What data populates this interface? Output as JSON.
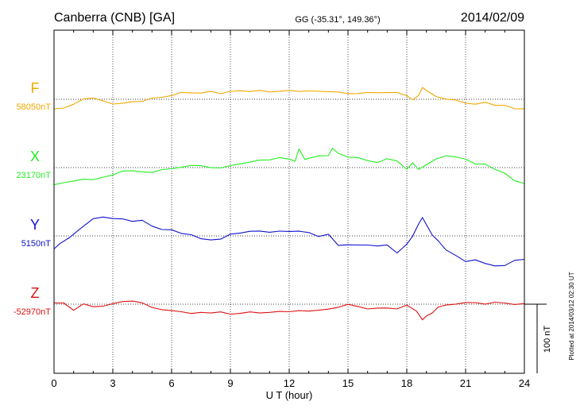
{
  "chart_data": {
    "type": "line",
    "title": "Canberra (CNB)  [GA]",
    "coords": "GG (-35.31°, 149.36°)",
    "date": "2014/02/09",
    "xlabel": "U T (hour)",
    "xlim": [
      0,
      24
    ],
    "xticks": [
      "0",
      "3",
      "6",
      "9",
      "12",
      "15",
      "18",
      "21",
      "24"
    ],
    "grid": true,
    "scale_bar_label": "100 nT",
    "plotted_note": "Plotted at 2014/03/12 02:30 UT",
    "series": [
      {
        "name": "F",
        "baseline_label": "58050nT",
        "color": "#f0a800",
        "baseline_nT": 58050,
        "x": [
          0,
          0.5,
          1,
          1.5,
          2,
          2.5,
          3,
          3.5,
          4,
          4.5,
          5,
          5.5,
          6,
          6.5,
          7,
          7.5,
          8,
          8.5,
          9,
          9.5,
          10,
          10.5,
          11,
          11.5,
          12,
          12.5,
          13,
          13.5,
          14,
          14.5,
          15,
          15.5,
          16,
          16.5,
          17,
          17.5,
          18,
          18.3,
          18.6,
          18.8,
          19,
          19.5,
          20,
          20.5,
          21,
          21.5,
          22,
          22.5,
          23,
          23.5,
          24
        ],
        "values": [
          -14,
          -12,
          -8,
          1,
          2,
          -3,
          -6,
          -6,
          -4,
          -2,
          1,
          3,
          6,
          9,
          10,
          9,
          11,
          9,
          11,
          12,
          12,
          12,
          11,
          12,
          12,
          12,
          12,
          11,
          12,
          10,
          8,
          9,
          9,
          10,
          10,
          9,
          6,
          -1,
          5,
          18,
          12,
          4,
          1,
          -2,
          -5,
          -7,
          -5,
          -8,
          -9,
          -14,
          -13
        ]
      },
      {
        "name": "X",
        "baseline_label": "23170nT",
        "color": "#22ee22",
        "baseline_nT": 23170,
        "x": [
          0,
          0.5,
          1,
          1.5,
          2,
          2.5,
          3,
          3.5,
          4,
          4.5,
          5,
          5.5,
          6,
          6.5,
          7,
          7.5,
          8,
          8.5,
          9,
          9.5,
          10,
          10.5,
          11,
          11.5,
          12,
          12.3,
          12.5,
          12.8,
          13,
          13.5,
          14,
          14.2,
          14.5,
          15,
          15.5,
          16,
          16.5,
          17,
          17.5,
          18,
          18.3,
          18.6,
          19,
          19.5,
          20,
          20.5,
          21,
          21.5,
          22,
          22.5,
          23,
          23.5,
          24
        ],
        "values": [
          -24,
          -22,
          -20,
          -16,
          -18,
          -14,
          -10,
          -6,
          -4,
          -6,
          -8,
          -2,
          -2,
          0,
          4,
          2,
          0,
          0,
          2,
          6,
          8,
          10,
          12,
          14,
          12,
          10,
          26,
          12,
          14,
          16,
          18,
          28,
          20,
          16,
          14,
          10,
          8,
          12,
          10,
          -2,
          6,
          -2,
          4,
          12,
          18,
          15,
          12,
          6,
          4,
          -2,
          -8,
          -20,
          -22
        ]
      },
      {
        "name": "Y",
        "baseline_label": "5150nT",
        "color": "#1111cc",
        "baseline_nT": 5150,
        "x": [
          0,
          0.3,
          0.8,
          1.3,
          2,
          2.5,
          3,
          3.5,
          4,
          4.5,
          5,
          5.5,
          6,
          6.5,
          7,
          7.5,
          8,
          8.5,
          9,
          9.5,
          10,
          10.5,
          11,
          11.5,
          12,
          12.5,
          13,
          13.5,
          14,
          14.5,
          15,
          15.5,
          16,
          16.5,
          17,
          17.5,
          18,
          18.3,
          18.6,
          18.8,
          19,
          19.3,
          19.6,
          20,
          20.5,
          21,
          21.5,
          22,
          22.5,
          23,
          23.5,
          24
        ],
        "values": [
          -18,
          -12,
          -2,
          10,
          24,
          28,
          25,
          24,
          22,
          22,
          14,
          10,
          8,
          4,
          2,
          -5,
          -5,
          -5,
          2,
          5,
          6,
          7,
          6,
          6,
          7,
          7,
          4,
          0,
          2,
          -14,
          -12,
          -14,
          -13,
          -14,
          -14,
          -24,
          -12,
          -1,
          18,
          26,
          16,
          2,
          -8,
          -20,
          -28,
          -38,
          -34,
          -40,
          -44,
          -42,
          -36,
          -34
        ]
      },
      {
        "name": "Z",
        "baseline_label": "-52970nT",
        "color": "#dd1111",
        "baseline_nT": -52970,
        "x": [
          0,
          0.5,
          1,
          1.5,
          2,
          2.5,
          3,
          3.5,
          4,
          4.5,
          5,
          5.5,
          6,
          6.5,
          7,
          7.5,
          8,
          8.5,
          9,
          9.5,
          10,
          10.5,
          11,
          11.5,
          12,
          12.5,
          13,
          13.5,
          14,
          14.5,
          15,
          15.5,
          16,
          16.5,
          17,
          17.5,
          18,
          18.5,
          18.8,
          19,
          19.3,
          19.6,
          20,
          20.5,
          21,
          21.5,
          22,
          22.5,
          23,
          23.5,
          24
        ],
        "values": [
          2,
          1,
          -8,
          0,
          -4,
          -2,
          0,
          4,
          5,
          1,
          -4,
          -8,
          -10,
          -10,
          -14,
          -12,
          -12,
          -12,
          -14,
          -13,
          -12,
          -12,
          -12,
          -11,
          -10,
          -10,
          -10,
          -8,
          -8,
          -4,
          0,
          -4,
          -6,
          -6,
          -6,
          -6,
          -2,
          -10,
          -22,
          -18,
          -12,
          -4,
          -2,
          1,
          2,
          2,
          1,
          2,
          2,
          0,
          0
        ]
      }
    ]
  }
}
